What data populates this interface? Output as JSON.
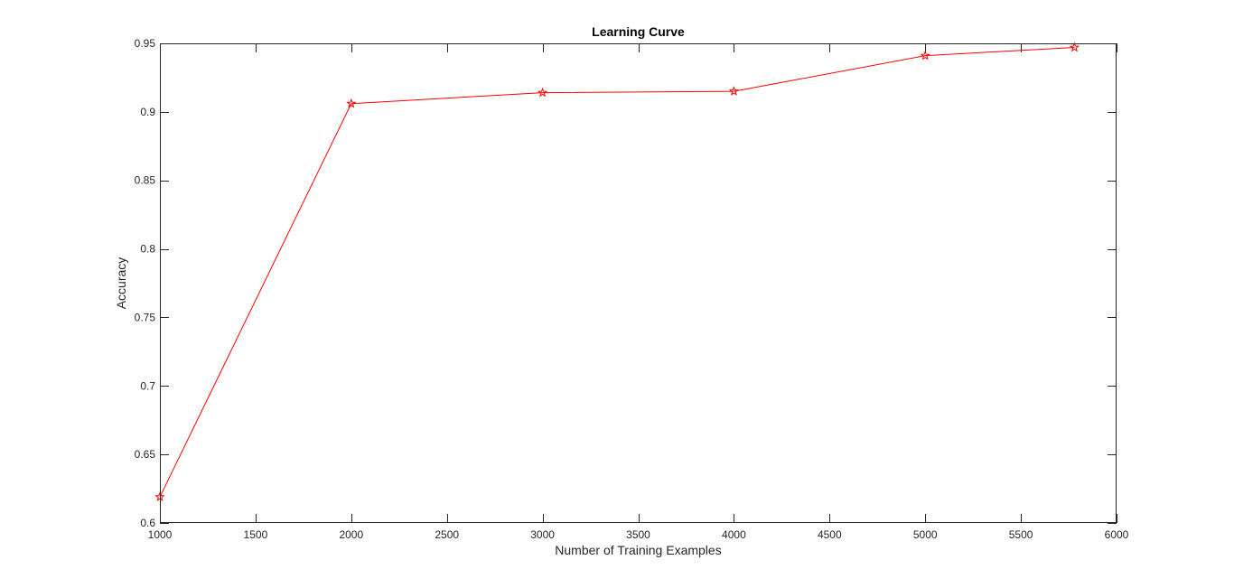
{
  "chart_data": {
    "type": "line",
    "title": "Learning Curve",
    "xlabel": "Number of Training Examples",
    "ylabel": "Accuracy",
    "xlim": [
      1000,
      6000
    ],
    "ylim": [
      0.6,
      0.95
    ],
    "xticks": [
      1000,
      1500,
      2000,
      2500,
      3000,
      3500,
      4000,
      4500,
      5000,
      5500,
      6000
    ],
    "xtick_labels": [
      "1000",
      "1500",
      "2000",
      "2500",
      "3000",
      "3500",
      "4000",
      "4500",
      "5000",
      "5500",
      "6000"
    ],
    "yticks": [
      0.6,
      0.65,
      0.7,
      0.75,
      0.8,
      0.85,
      0.9,
      0.95
    ],
    "ytick_labels": [
      "0.6",
      "0.65",
      "0.7",
      "0.75",
      "0.8",
      "0.85",
      "0.9",
      "0.95"
    ],
    "grid": false,
    "series": [
      {
        "color": "#ff0000",
        "marker": "pentagram",
        "x": [
          1000,
          2000,
          3000,
          4000,
          5000,
          5780
        ],
        "y": [
          0.619,
          0.906,
          0.914,
          0.915,
          0.941,
          0.947
        ]
      }
    ]
  }
}
